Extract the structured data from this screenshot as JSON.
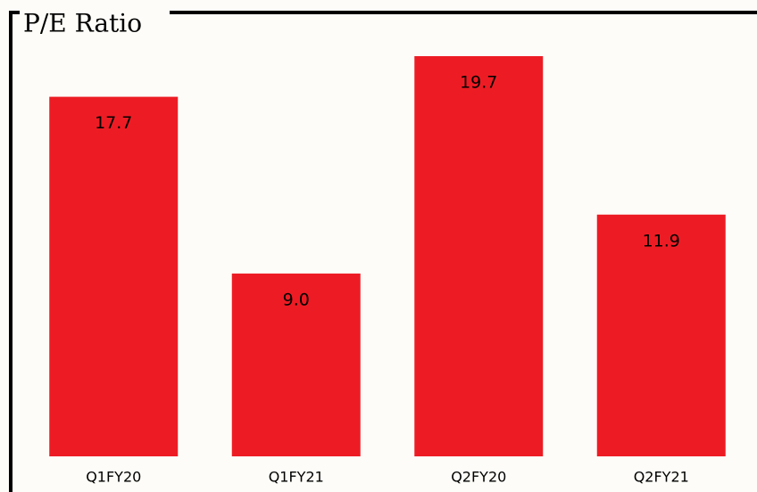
{
  "chart_data": {
    "type": "bar",
    "title": "P/E Ratio",
    "categories": [
      "Q1FY20",
      "Q1FY21",
      "Q2FY20",
      "Q2FY21"
    ],
    "values": [
      17.7,
      9.0,
      19.7,
      11.9
    ],
    "value_labels": [
      "17.7",
      "9.0",
      "19.7",
      "11.9"
    ],
    "color": "#ed1c24"
  }
}
